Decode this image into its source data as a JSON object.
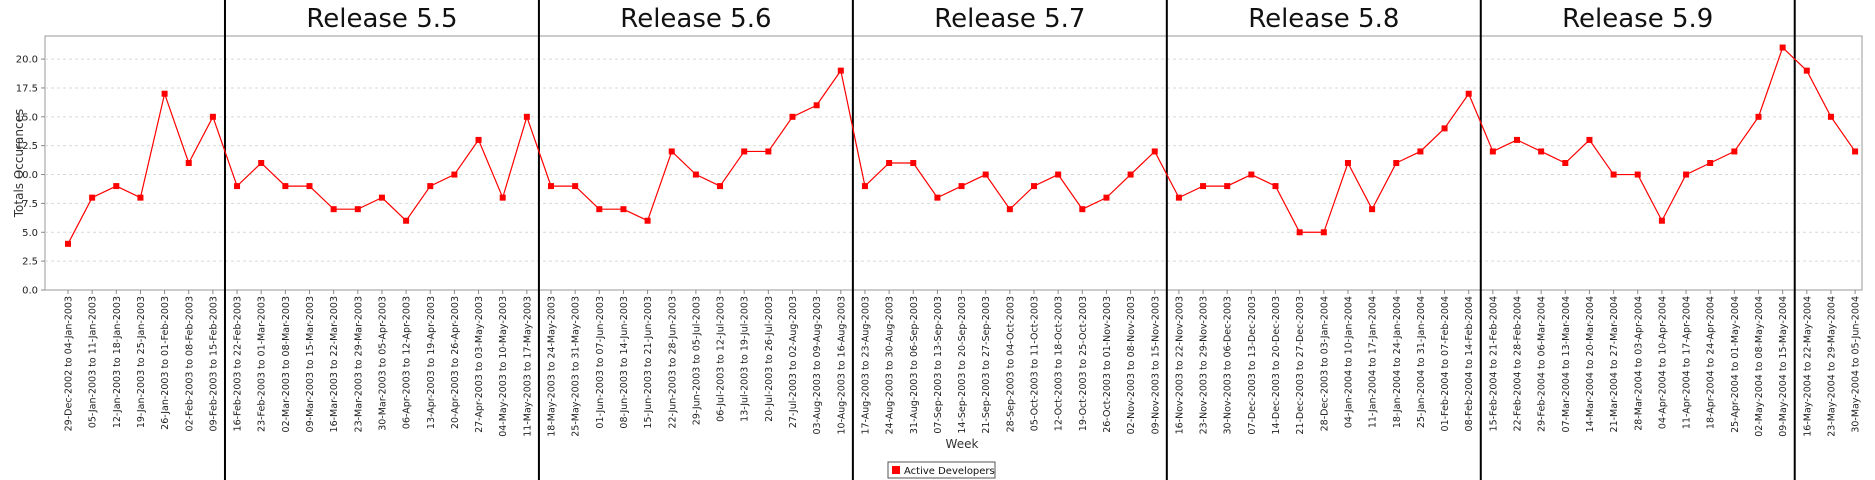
{
  "chart_data": {
    "type": "line",
    "xlabel": "Week",
    "ylabel": "Totals Occurances",
    "ylim": [
      0,
      22
    ],
    "yticks": [
      "0.0",
      "2.5",
      "5.0",
      "7.5",
      "10.0",
      "12.5",
      "15.0",
      "17.5",
      "20.0"
    ],
    "grid": true,
    "legend_position": "bottom",
    "colors": {
      "series": "#ff0000",
      "release_line": "#000000",
      "grid": "#d9d9d9",
      "axis": "#888888"
    },
    "categories": [
      "29-Dec-2002 to 04-Jan-2003",
      "05-Jan-2003 to 11-Jan-2003",
      "12-Jan-2003 to 18-Jan-2003",
      "19-Jan-2003 to 25-Jan-2003",
      "26-Jan-2003 to 01-Feb-2003",
      "02-Feb-2003 to 08-Feb-2003",
      "09-Feb-2003 to 15-Feb-2003",
      "16-Feb-2003 to 22-Feb-2003",
      "23-Feb-2003 to 01-Mar-2003",
      "02-Mar-2003 to 08-Mar-2003",
      "09-Mar-2003 to 15-Mar-2003",
      "16-Mar-2003 to 22-Mar-2003",
      "23-Mar-2003 to 29-Mar-2003",
      "30-Mar-2003 to 05-Apr-2003",
      "06-Apr-2003 to 12-Apr-2003",
      "13-Apr-2003 to 19-Apr-2003",
      "20-Apr-2003 to 26-Apr-2003",
      "27-Apr-2003 to 03-May-2003",
      "04-May-2003 to 10-May-2003",
      "11-May-2003 to 17-May-2003",
      "18-May-2003 to 24-May-2003",
      "25-May-2003 to 31-May-2003",
      "01-Jun-2003 to 07-Jun-2003",
      "08-Jun-2003 to 14-Jun-2003",
      "15-Jun-2003 to 21-Jun-2003",
      "22-Jun-2003 to 28-Jun-2003",
      "29-Jun-2003 to 05-Jul-2003",
      "06-Jul-2003 to 12-Jul-2003",
      "13-Jul-2003 to 19-Jul-2003",
      "20-Jul-2003 to 26-Jul-2003",
      "27-Jul-2003 to 02-Aug-2003",
      "03-Aug-2003 to 09-Aug-2003",
      "10-Aug-2003 to 16-Aug-2003",
      "17-Aug-2003 to 23-Aug-2003",
      "24-Aug-2003 to 30-Aug-2003",
      "31-Aug-2003 to 06-Sep-2003",
      "07-Sep-2003 to 13-Sep-2003",
      "14-Sep-2003 to 20-Sep-2003",
      "21-Sep-2003 to 27-Sep-2003",
      "28-Sep-2003 to 04-Oct-2003",
      "05-Oct-2003 to 11-Oct-2003",
      "12-Oct-2003 to 18-Oct-2003",
      "19-Oct-2003 to 25-Oct-2003",
      "26-Oct-2003 to 01-Nov-2003",
      "02-Nov-2003 to 08-Nov-2003",
      "09-Nov-2003 to 15-Nov-2003",
      "16-Nov-2003 to 22-Nov-2003",
      "23-Nov-2003 to 29-Nov-2003",
      "30-Nov-2003 to 06-Dec-2003",
      "07-Dec-2003 to 13-Dec-2003",
      "14-Dec-2003 to 20-Dec-2003",
      "21-Dec-2003 to 27-Dec-2003",
      "28-Dec-2003 to 03-Jan-2004",
      "04-Jan-2004 to 10-Jan-2004",
      "11-Jan-2004 to 17-Jan-2004",
      "18-Jan-2004 to 24-Jan-2004",
      "25-Jan-2004 to 31-Jan-2004",
      "01-Feb-2004 to 07-Feb-2004",
      "08-Feb-2004 to 14-Feb-2004",
      "15-Feb-2004 to 21-Feb-2004",
      "22-Feb-2004 to 28-Feb-2004",
      "29-Feb-2004 to 06-Mar-2004",
      "07-Mar-2004 to 13-Mar-2004",
      "14-Mar-2004 to 20-Mar-2004",
      "21-Mar-2004 to 27-Mar-2004",
      "28-Mar-2004 to 03-Apr-2004",
      "04-Apr-2004 to 10-Apr-2004",
      "11-Apr-2004 to 17-Apr-2004",
      "18-Apr-2004 to 24-Apr-2004",
      "25-Apr-2004 to 01-May-2004",
      "02-May-2004 to 08-May-2004",
      "09-May-2004 to 15-May-2004",
      "16-May-2004 to 22-May-2004",
      "23-May-2004 to 29-May-2004",
      "30-May-2004 to 05-Jun-2004"
    ],
    "series": [
      {
        "name": "Active Developers",
        "values": [
          4,
          8,
          9,
          8,
          17,
          11,
          15,
          9,
          11,
          9,
          9,
          7,
          7,
          8,
          6,
          9,
          10,
          13,
          8,
          15,
          9,
          9,
          7,
          7,
          6,
          12,
          10,
          9,
          12,
          12,
          15,
          16,
          19,
          9,
          11,
          11,
          8,
          9,
          10,
          7,
          9,
          10,
          7,
          8,
          10,
          12,
          8,
          9,
          9,
          10,
          9,
          5,
          5,
          11,
          7,
          11,
          12,
          14,
          17,
          12,
          13,
          12,
          11,
          13,
          10,
          10,
          6,
          10,
          11,
          12,
          15,
          21,
          19,
          15,
          12
        ]
      }
    ],
    "releases": [
      {
        "label": "Release 5.5",
        "start_index": 7,
        "end_index": 19
      },
      {
        "label": "Release 5.6",
        "start_index": 20,
        "end_index": 32
      },
      {
        "label": "Release 5.7",
        "start_index": 33,
        "end_index": 45
      },
      {
        "label": "Release 5.8",
        "start_index": 46,
        "end_index": 58
      },
      {
        "label": "Release 5.9",
        "start_index": 59,
        "end_index": 71
      }
    ]
  }
}
